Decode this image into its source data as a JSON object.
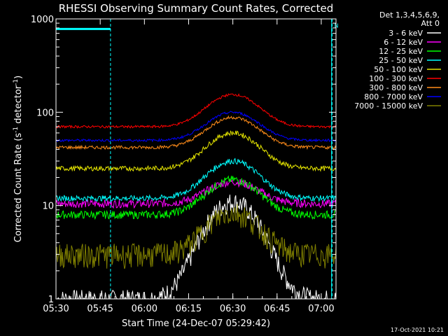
{
  "chart_data": {
    "type": "line",
    "title": "RHESSI Observing Summary Count Rates, Corrected",
    "xlabel": "Start Time (24-Dec-07 05:29:42)",
    "ylabel_parts": [
      "Corrected Count Rate (s",
      "-1",
      " detector",
      "-1",
      ")"
    ],
    "yscale": "log",
    "ylim": [
      1,
      1000
    ],
    "xlim_minutes_from_0530": [
      0,
      95
    ],
    "x_ticks": [
      {
        "label": "05:30",
        "value": 0
      },
      {
        "label": "05:45",
        "value": 15
      },
      {
        "label": "06:00",
        "value": 30
      },
      {
        "label": "06:15",
        "value": 45
      },
      {
        "label": "06:30",
        "value": 60
      },
      {
        "label": "06:45",
        "value": 75
      },
      {
        "label": "07:00",
        "value": 90
      }
    ],
    "y_ticks": [
      {
        "label": "1",
        "value": 1
      },
      {
        "label": "10",
        "value": 10
      },
      {
        "label": "100",
        "value": 100
      },
      {
        "label": "1000",
        "value": 1000
      }
    ],
    "legend": {
      "placement": "right",
      "header": [
        "Det 1,3,4,5,6,9,",
        "Att 0"
      ]
    },
    "night_markers": [
      0,
      93.5
    ],
    "saa_markers": [
      18.5,
      105
    ],
    "flag_bars": [
      {
        "label": "",
        "x0": 0,
        "x1": 18.5,
        "y": 780
      },
      {
        "label": "N",
        "x0": 93.5,
        "x1": 105,
        "y": 780
      }
    ],
    "series": [
      {
        "name": "3 - 6 keV",
        "color": "#ffffff",
        "baseline": 1,
        "peak": 11,
        "noise": 0.25
      },
      {
        "name": "6 - 12 keV",
        "color": "#ff00ff",
        "baseline": 10.5,
        "peak": 18,
        "noise": 0.1
      },
      {
        "name": "12 - 25 keV",
        "color": "#00ff00",
        "baseline": 8,
        "peak": 19,
        "noise": 0.1
      },
      {
        "name": "25 - 50 keV",
        "color": "#00ffff",
        "baseline": 12,
        "peak": 30,
        "noise": 0.07
      },
      {
        "name": "50 - 100 keV",
        "color": "#e6e600",
        "baseline": 25,
        "peak": 60,
        "noise": 0.06
      },
      {
        "name": "100 - 300 keV",
        "color": "#ff0000",
        "baseline": 70,
        "peak": 155,
        "noise": 0.03
      },
      {
        "name": "300 - 800 keV",
        "color": "#ff8c1a",
        "baseline": 42,
        "peak": 88,
        "noise": 0.04
      },
      {
        "name": "800 - 7000 keV",
        "color": "#0000ff",
        "baseline": 50,
        "peak": 100,
        "noise": 0.03
      },
      {
        "name": "7000 - 15000 keV",
        "color": "#808000",
        "baseline": 3,
        "peak": 8.5,
        "noise": 0.3
      }
    ],
    "grid": false
  },
  "footer": {
    "timestamp": "17-Oct-2021 10:21"
  }
}
